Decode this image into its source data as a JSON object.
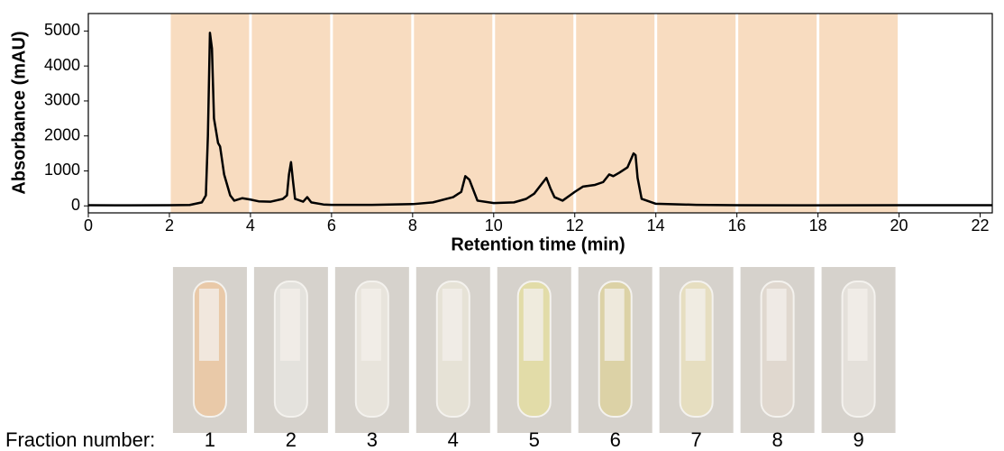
{
  "chart_data": {
    "type": "line",
    "xlabel": "Retention time (min)",
    "ylabel": "Absorbance (mAU)",
    "x": [
      0,
      1,
      2,
      2.5,
      2.8,
      2.9,
      2.95,
      3.0,
      3.05,
      3.1,
      3.2,
      3.25,
      3.35,
      3.5,
      3.6,
      3.8,
      4.0,
      4.2,
      4.5,
      4.8,
      4.9,
      4.95,
      5.0,
      5.05,
      5.1,
      5.3,
      5.4,
      5.5,
      5.8,
      6,
      7,
      8,
      8.5,
      9,
      9.2,
      9.3,
      9.4,
      9.6,
      10,
      10.5,
      10.8,
      11,
      11.2,
      11.3,
      11.4,
      11.5,
      11.7,
      12,
      12.2,
      12.5,
      12.7,
      12.85,
      12.95,
      13.1,
      13.3,
      13.45,
      13.5,
      13.55,
      13.65,
      14,
      15,
      16,
      18,
      20,
      22.3
    ],
    "values": [
      20,
      15,
      20,
      25,
      100,
      300,
      2000,
      4950,
      4500,
      2500,
      1800,
      1700,
      900,
      300,
      150,
      220,
      180,
      130,
      120,
      200,
      300,
      900,
      1250,
      700,
      200,
      120,
      250,
      100,
      40,
      30,
      30,
      50,
      100,
      250,
      400,
      850,
      750,
      150,
      80,
      100,
      200,
      350,
      650,
      800,
      500,
      250,
      150,
      400,
      550,
      600,
      680,
      900,
      850,
      950,
      1100,
      1500,
      1450,
      800,
      200,
      60,
      30,
      20,
      15,
      20,
      20
    ],
    "color": "#000000",
    "band_color": "#f8dcc0",
    "bands": [
      [
        2,
        4
      ],
      [
        4,
        6
      ],
      [
        6,
        8
      ],
      [
        8,
        10
      ],
      [
        10,
        12
      ],
      [
        12,
        14
      ],
      [
        14,
        16
      ],
      [
        16,
        18
      ],
      [
        18,
        20
      ]
    ],
    "fraction_title": "Fraction number:",
    "fractions": [
      "1",
      "2",
      "3",
      "4",
      "5",
      "6",
      "7",
      "8",
      "9"
    ],
    "xlim": [
      0,
      22.3
    ],
    "ylim": [
      -200,
      5500
    ],
    "xticks": [
      0,
      2,
      4,
      6,
      8,
      10,
      12,
      14,
      16,
      18,
      20,
      22
    ],
    "yticks": [
      0,
      1000,
      2000,
      3000,
      4000,
      5000
    ]
  }
}
